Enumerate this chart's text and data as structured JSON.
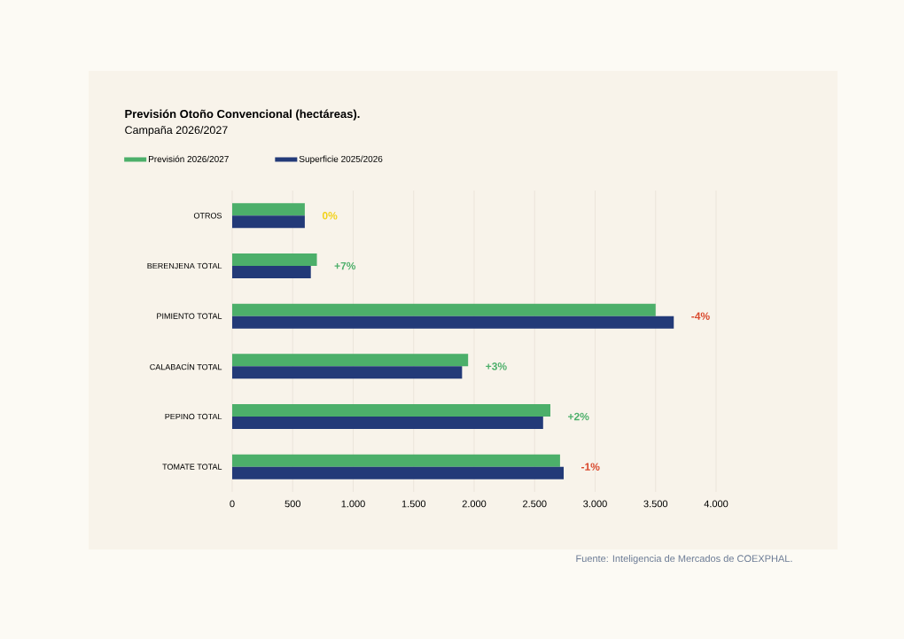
{
  "chart_data": {
    "type": "bar",
    "orientation": "horizontal",
    "title": "Previsión Otoño Convencional (hectáreas).",
    "subtitle": "Campaña 2026/2027",
    "categories": [
      "OTROS",
      "BERENJENA TOTAL",
      "PIMIENTO TOTAL",
      "CALABACÍN TOTAL",
      "PEPINO TOTAL",
      "TOMATE TOTAL"
    ],
    "series": [
      {
        "name": "Previsión 2026/2027",
        "color": "#4caf6a",
        "values": [
          600,
          700,
          3500,
          1950,
          2630,
          2710
        ]
      },
      {
        "name": "Superficie 2025/2026",
        "color": "#233a78",
        "values": [
          600,
          650,
          3650,
          1900,
          2570,
          2740
        ]
      }
    ],
    "xlim": [
      0,
      4000
    ],
    "xticks": [
      0,
      500,
      {
        "value": 1000,
        "label": "1.000"
      },
      {
        "value": 1500,
        "label": "1.500"
      },
      {
        "value": 2000,
        "label": "2.000"
      },
      {
        "value": 2500,
        "label": "2.500"
      },
      {
        "value": 3000,
        "label": "3.000"
      },
      {
        "value": 3500,
        "label": "3.500"
      },
      {
        "value": 4000,
        "label": "4.000"
      }
    ],
    "grid": "x",
    "legend": "top",
    "annotations": [
      "0%",
      "+7%",
      "-4%",
      "+3%",
      "+2%",
      "-1%",
      "Fuente: Inteligencia de Mercados de COEXPHAL."
    ]
  }
}
